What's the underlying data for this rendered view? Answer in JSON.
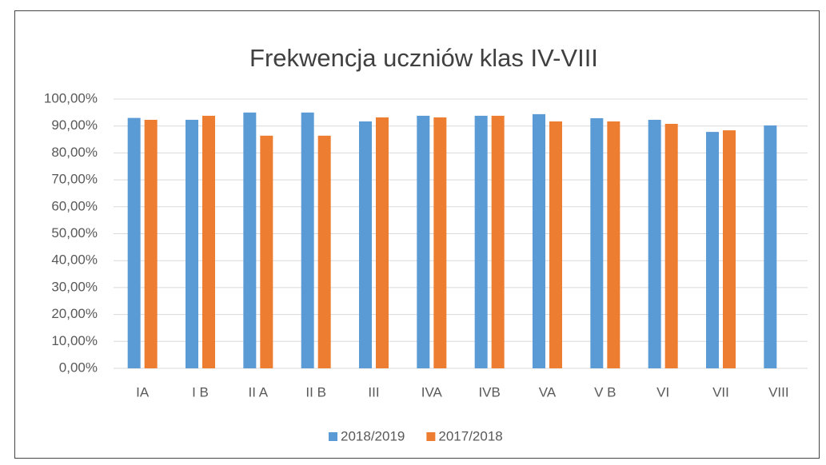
{
  "chart_data": {
    "type": "bar",
    "title": "Frekwencja uczniów klas IV-VIII",
    "categories": [
      "IA",
      "I B",
      "II A",
      "II B",
      "III",
      "IVA",
      "IVB",
      "VA",
      "V B",
      "VI",
      "VII",
      "VIII"
    ],
    "series": [
      {
        "name": "2018/2019",
        "color": "#5b9bd5",
        "values": [
          93.0,
          92.3,
          95.0,
          95.0,
          91.7,
          93.8,
          93.8,
          94.4,
          92.9,
          92.3,
          87.8,
          90.2
        ]
      },
      {
        "name": "2017/2018",
        "color": "#ed7d31",
        "values": [
          92.3,
          93.8,
          86.4,
          86.4,
          93.2,
          93.2,
          93.8,
          91.7,
          91.7,
          90.8,
          88.4,
          null
        ]
      }
    ],
    "ylim": [
      0,
      100
    ],
    "yticks": [
      {
        "value": 0,
        "label": "0,00%"
      },
      {
        "value": 10,
        "label": "10,00%"
      },
      {
        "value": 20,
        "label": "20,00%"
      },
      {
        "value": 30,
        "label": "30,00%"
      },
      {
        "value": 40,
        "label": "40,00%"
      },
      {
        "value": 50,
        "label": "50,00%"
      },
      {
        "value": 60,
        "label": "60,00%"
      },
      {
        "value": 70,
        "label": "70,00%"
      },
      {
        "value": 80,
        "label": "80,00%"
      },
      {
        "value": 90,
        "label": "90,00%"
      },
      {
        "value": 100,
        "label": "100,00%"
      }
    ],
    "grid": true,
    "legend": "bottom"
  }
}
